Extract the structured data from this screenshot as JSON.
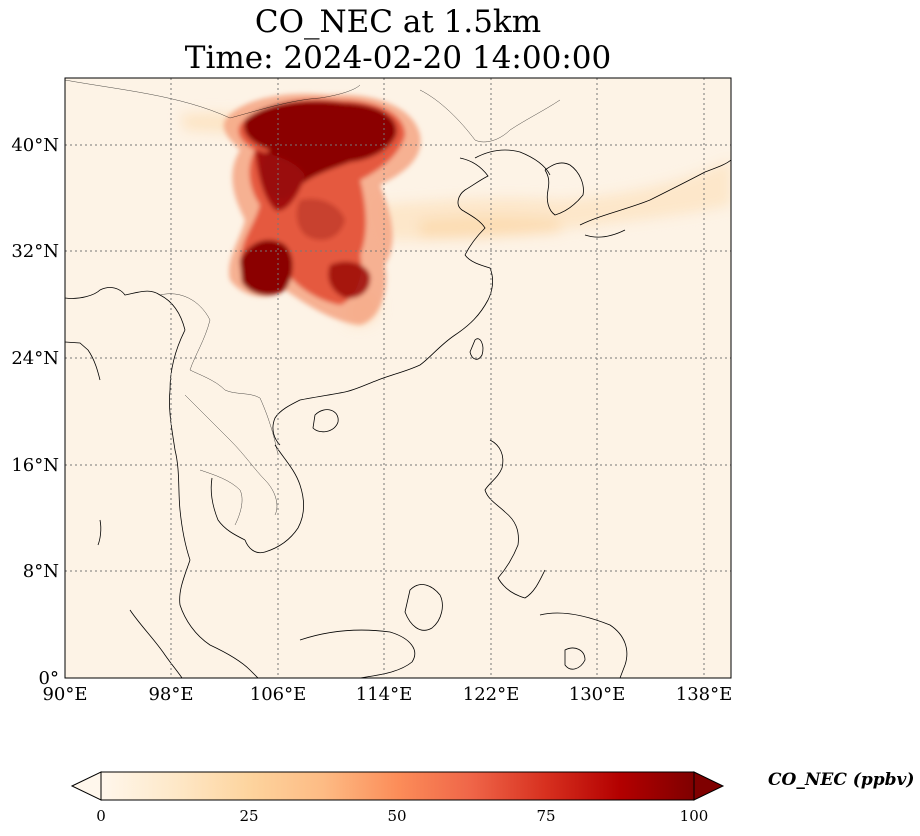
{
  "title_line1": "CO_NEC at 1.5km",
  "title_line2": "Time: 2024-02-20 14:00:00",
  "map": {
    "lon_range": [
      90,
      140
    ],
    "lat_range": [
      0,
      45
    ],
    "lon_ticks": [
      "90°E",
      "98°E",
      "106°E",
      "114°E",
      "122°E",
      "130°E",
      "138°E"
    ],
    "lat_ticks": [
      "0°",
      "8°N",
      "16°N",
      "24°N",
      "32°N",
      "40°N"
    ],
    "gridlines": "dotted",
    "field": "CO_NEC",
    "plume_region": "North China, approx. 102–115°E, 27–43°N, strongest values >100 ppbv"
  },
  "colorbar": {
    "label": "CO_NEC (ppbv)",
    "ticks": [
      "0",
      "25",
      "50",
      "75",
      "100"
    ],
    "range": [
      0,
      100
    ],
    "colormap": "OrRd",
    "extend": "both",
    "colors": [
      "#fff7ec",
      "#fee8c8",
      "#fdd49e",
      "#fdbb84",
      "#fc8d59",
      "#ef6548",
      "#d7301f",
      "#b30000",
      "#7f0000"
    ]
  }
}
